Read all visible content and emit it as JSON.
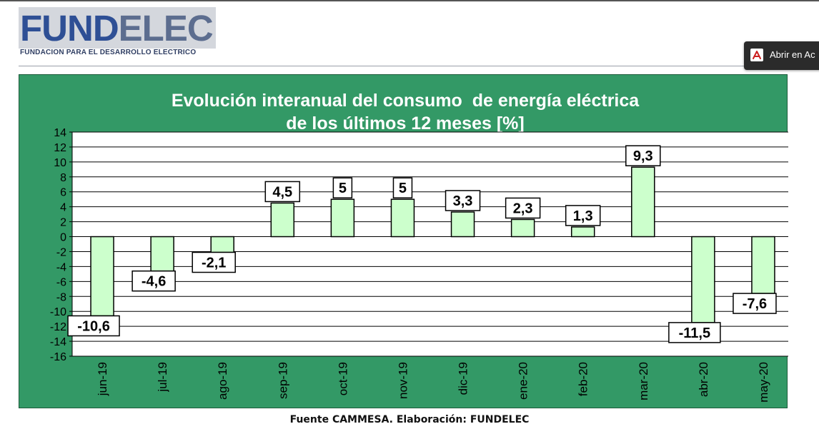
{
  "header": {
    "logo_text_a": "FUND",
    "logo_text_b": "ELEC",
    "logo_tagline": "FUNDACION PARA EL DESARROLLO ELECTRICO"
  },
  "pdf_button": {
    "label": "Abrir en Ac",
    "icon": "pdf-icon"
  },
  "source_note": "Fuente CAMMESA. Elaboración: FUNDELEC",
  "colors": {
    "panel_bg": "#339966",
    "plot_bg": "#ffffff",
    "bar_fill": "#ccffcc",
    "bar_stroke": "#000000",
    "title_color": "#ffffff"
  },
  "chart_data": {
    "type": "bar",
    "title": "Evolución interanual del consumo  de energía eléctrica",
    "subtitle": "de los últimos 12 meses [%]",
    "xlabel": "",
    "ylabel": "",
    "categories": [
      "jun-19",
      "jul-19",
      "ago-19",
      "sep-19",
      "oct-19",
      "nov-19",
      "dic-19",
      "ene-20",
      "feb-20",
      "mar-20",
      "abr-20",
      "may-20"
    ],
    "values": [
      -10.6,
      -4.6,
      -2.1,
      4.5,
      5,
      5,
      3.3,
      2.3,
      1.3,
      9.3,
      -11.5,
      -7.6
    ],
    "data_labels": [
      "-10,6",
      "-4,6",
      "-2,1",
      "4,5",
      "5",
      "5",
      "3,3",
      "2,3",
      "1,3",
      "9,3",
      "-11,5",
      "-7,6"
    ],
    "ylim": [
      -16,
      14
    ],
    "yticks": [
      14,
      12,
      10,
      8,
      6,
      4,
      2,
      0,
      -2,
      -4,
      -6,
      -8,
      -10,
      -12,
      -14,
      -16
    ],
    "grid": true,
    "legend": "none"
  }
}
